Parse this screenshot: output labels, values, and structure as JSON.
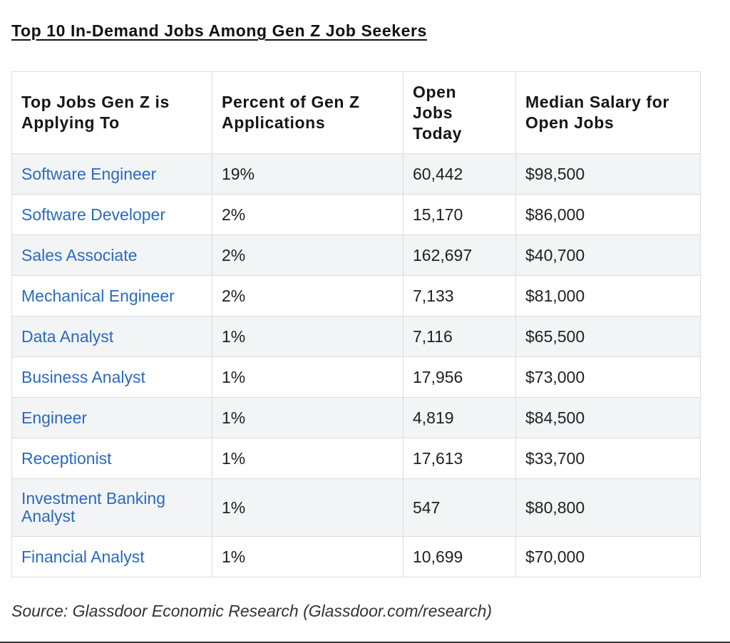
{
  "title": "Top 10 In-Demand Jobs Among Gen Z Job Seekers",
  "table": {
    "headers": [
      "Top Jobs Gen Z is Applying To",
      "Percent of Gen Z Applications",
      "Open Jobs Today",
      "Median Salary for Open Jobs"
    ],
    "rows": [
      {
        "job": "Software Engineer",
        "percent": "19%",
        "open_jobs": "60,442",
        "salary": "$98,500"
      },
      {
        "job": "Software Developer",
        "percent": "2%",
        "open_jobs": "15,170",
        "salary": "$86,000"
      },
      {
        "job": "Sales Associate",
        "percent": "2%",
        "open_jobs": "162,697",
        "salary": "$40,700"
      },
      {
        "job": "Mechanical Engineer",
        "percent": "2%",
        "open_jobs": "7,133",
        "salary": "$81,000"
      },
      {
        "job": "Data Analyst",
        "percent": "1%",
        "open_jobs": "7,116",
        "salary": "$65,500"
      },
      {
        "job": "Business Analyst",
        "percent": "1%",
        "open_jobs": "17,956",
        "salary": "$73,000"
      },
      {
        "job": "Engineer",
        "percent": "1%",
        "open_jobs": "4,819",
        "salary": "$84,500"
      },
      {
        "job": "Receptionist",
        "percent": "1%",
        "open_jobs": "17,613",
        "salary": "$33,700"
      },
      {
        "job": "Investment Banking Analyst",
        "percent": "1%",
        "open_jobs": "547",
        "salary": "$80,800"
      },
      {
        "job": "Financial Analyst",
        "percent": "1%",
        "open_jobs": "10,699",
        "salary": "$70,000"
      }
    ]
  },
  "source": "Source: Glassdoor Economic Research (Glassdoor.com/research)",
  "colors": {
    "link": "#2a6ac0",
    "stripe": "#f3f4f6",
    "border": "#dcdcdc"
  }
}
